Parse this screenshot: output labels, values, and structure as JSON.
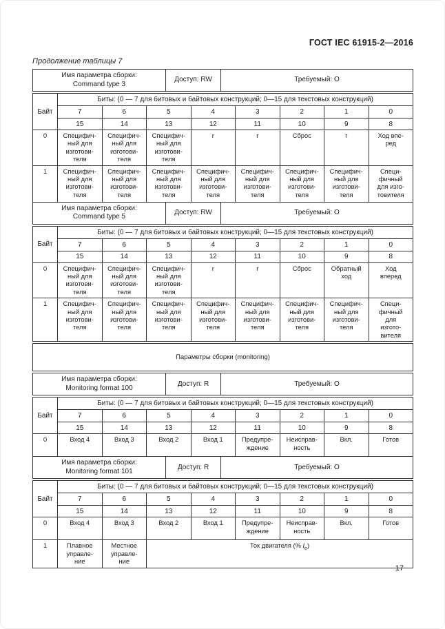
{
  "page": {
    "standard": "ГОСТ IEC 61915-2—2016",
    "caption": "Продолжение таблицы 7",
    "number": "17"
  },
  "common": {
    "param_label": "Имя параметра сборки:",
    "byte": "Байт",
    "bits_note": "Биты: (0 — 7 для битовых и байтовых конструкций; 0—15 для текстовых конструкций)",
    "bits_hi": [
      "7",
      "6",
      "5",
      "4",
      "3",
      "2",
      "1",
      "0"
    ],
    "bits_lo": [
      "15",
      "14",
      "13",
      "12",
      "11",
      "10",
      "9",
      "8"
    ]
  },
  "bands": {
    "b1": {
      "name": "Command type 3",
      "access": "Доступ: RW",
      "required": "Требуемый: О"
    },
    "b2": {
      "name": "Command type 5",
      "access": "Доступ: RW",
      "required": "Требуемый: О"
    },
    "b3": {
      "name": "Monitoring format 100",
      "access": "Доступ: R",
      "required": "Требуемый: О"
    },
    "b4": {
      "name": "Monitoring format 101",
      "access": "Доступ: R",
      "required": "Требуемый: О"
    }
  },
  "mon": {
    "title": "Параметры сборки (monitoring)"
  },
  "t1": {
    "r0": {
      "byte": "0",
      "c": [
        [
          "Специфич-",
          "ный для",
          "изготови-",
          "теля"
        ],
        [
          "Специфич-",
          "ный для",
          "изготови-",
          "теля"
        ],
        [
          "Специфич-",
          "ный для",
          "изготови-",
          "теля"
        ],
        [
          "r"
        ],
        [
          "r"
        ],
        [
          "Сброс"
        ],
        [
          "r"
        ],
        [
          "Ход впе-",
          "ред"
        ]
      ]
    },
    "r1": {
      "byte": "1",
      "c": [
        [
          "Специфич-",
          "ный для",
          "изготови-",
          "теля"
        ],
        [
          "Специфич-",
          "ный для",
          "изготови-",
          "теля"
        ],
        [
          "Специфич-",
          "ный для",
          "изготови-",
          "теля"
        ],
        [
          "Специфич-",
          "ный для",
          "изготови-",
          "теля"
        ],
        [
          "Специфич-",
          "ный для",
          "изготови-",
          "теля"
        ],
        [
          "Специфич-",
          "ный для",
          "изготови-",
          "теля"
        ],
        [
          "Специфич-",
          "ный для",
          "изготови-",
          "теля"
        ],
        [
          "Специ-",
          "фичный",
          "для изго-",
          "товителя"
        ]
      ]
    }
  },
  "t2": {
    "r0": {
      "byte": "0",
      "c": [
        [
          "Специфич-",
          "ный для",
          "изготови-",
          "теля"
        ],
        [
          "Специфич-",
          "ный для",
          "изготови-",
          "теля"
        ],
        [
          "Специфич-",
          "ный для",
          "изготови-",
          "теля"
        ],
        [
          "r"
        ],
        [
          "r"
        ],
        [
          "Сброс"
        ],
        [
          "Обратный",
          "ход"
        ],
        [
          "Ход",
          "вперед"
        ]
      ]
    },
    "r1": {
      "byte": "1",
      "c": [
        [
          "Специфич-",
          "ный для",
          "изготови-",
          "теля"
        ],
        [
          "Специфич-",
          "ный для",
          "изготови-",
          "теля"
        ],
        [
          "Специфич-",
          "ный для",
          "изготови-",
          "теля"
        ],
        [
          "Специфич-",
          "ный для",
          "изготови-",
          "теля"
        ],
        [
          "Специфич-",
          "ный для",
          "изготови-",
          "теля"
        ],
        [
          "Специфич-",
          "ный для",
          "изготови-",
          "теля"
        ],
        [
          "Специфич-",
          "ный для",
          "изготови-",
          "теля"
        ],
        [
          "Специ-",
          "фичный",
          "для",
          "изгото-",
          "вителя"
        ]
      ]
    }
  },
  "t3": {
    "r0": {
      "byte": "0",
      "c": [
        [
          "Вход 4"
        ],
        [
          "Вход 3"
        ],
        [
          "Вход 2"
        ],
        [
          "Вход 1"
        ],
        [
          "Предупре-",
          "ждение"
        ],
        [
          "Неисправ-",
          "ность"
        ],
        [
          "Вкл."
        ],
        [
          "Готов"
        ]
      ]
    }
  },
  "t4": {
    "r0": {
      "byte": "0",
      "c": [
        [
          "Вход 4"
        ],
        [
          "Вход 3"
        ],
        [
          "Вход 2"
        ],
        [
          "Вход 1"
        ],
        [
          "Предупре-",
          "ждение"
        ],
        [
          "Неисправ-",
          "ность"
        ],
        [
          "Вкл."
        ],
        [
          "Готов"
        ]
      ]
    },
    "r1": {
      "byte": "1",
      "c": [
        [
          "Плавное",
          "управле-",
          "ние"
        ],
        [
          "Местное",
          "управле-",
          "ние"
        ]
      ],
      "cur": {
        "pre": "Ток двигателя (% ",
        "sym": "I",
        "sub": "e",
        "post": ")"
      }
    }
  }
}
